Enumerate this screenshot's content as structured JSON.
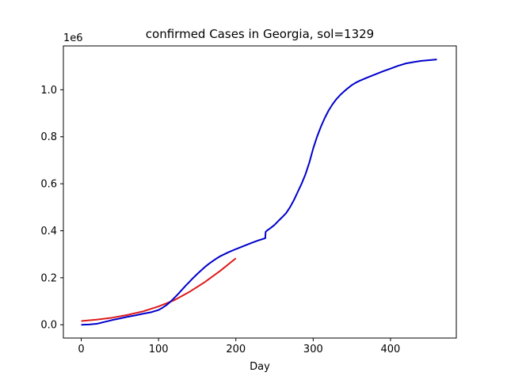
{
  "chart_data": {
    "type": "line",
    "title": "confirmed Cases in Georgia, sol=1329",
    "xlabel": "Day",
    "ylabel": "",
    "y_offset_text": "1e6",
    "xlim": [
      -23.1,
      485.1
    ],
    "ylim": [
      -56500,
      1186500
    ],
    "x_ticks": [
      0,
      100,
      200,
      300,
      400
    ],
    "x_tick_labels": [
      "0",
      "100",
      "200",
      "300",
      "400"
    ],
    "y_ticks": [
      0,
      200000,
      400000,
      600000,
      800000,
      1000000
    ],
    "y_tick_labels": [
      "0.0",
      "0.2",
      "0.4",
      "0.6",
      "0.8",
      "1.0"
    ],
    "grid": false,
    "series": [
      {
        "color": "#dd1a1a",
        "x": [
          0,
          20,
          40,
          60,
          80,
          100,
          120,
          140,
          160,
          180,
          200
        ],
        "y": [
          16000,
          22000,
          30000,
          42000,
          57000,
          78000,
          104000,
          140000,
          182000,
          230000,
          283000
        ]
      },
      {
        "color": "#0000cc",
        "x": [
          0,
          10,
          20,
          30,
          40,
          50,
          60,
          70,
          80,
          90,
          100,
          105,
          110,
          115,
          120,
          125,
          130,
          135,
          140,
          145,
          150,
          155,
          160,
          165,
          170,
          175,
          180,
          190,
          200,
          210,
          220,
          230,
          238,
          238.5,
          240,
          245,
          250,
          255,
          260,
          265,
          270,
          275,
          280,
          285,
          290,
          295,
          300,
          305,
          310,
          315,
          320,
          325,
          330,
          335,
          340,
          345,
          350,
          355,
          360,
          370,
          380,
          390,
          400,
          410,
          420,
          430,
          440,
          450,
          460
        ],
        "y": [
          0,
          1000,
          4000,
          12000,
          20000,
          27000,
          34000,
          40000,
          47000,
          53000,
          63000,
          72000,
          83000,
          97000,
          113000,
          130000,
          148000,
          166000,
          183000,
          200000,
          216000,
          231000,
          246000,
          259000,
          271000,
          282000,
          292000,
          308000,
          322000,
          335000,
          348000,
          360000,
          368000,
          395000,
          400000,
          412000,
          425000,
          442000,
          458000,
          475000,
          500000,
          530000,
          565000,
          600000,
          640000,
          690000,
          750000,
          800000,
          843000,
          880000,
          912000,
          938000,
          960000,
          978000,
          993000,
          1007000,
          1020000,
          1030000,
          1038000,
          1052000,
          1065000,
          1078000,
          1090000,
          1102000,
          1112000,
          1118000,
          1123000,
          1126000,
          1129000
        ]
      }
    ]
  }
}
